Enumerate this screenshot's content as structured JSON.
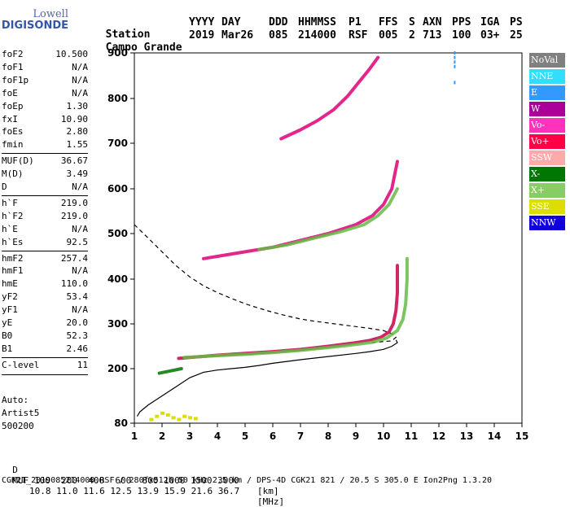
{
  "logo": {
    "line1": "Lowell",
    "line2": "DIGISONDE"
  },
  "header": {
    "labels": [
      "Station",
      "YYYY",
      "DAY",
      "DDD",
      "HHMMSS",
      "P1",
      "FFS",
      "S",
      "AXN",
      "PPS",
      "IGA",
      "PS"
    ],
    "values": [
      "Campo Grande",
      "2019",
      "Mar26",
      "085",
      "214000",
      "RSF",
      "005",
      "2",
      "713",
      "100",
      "03+",
      "25"
    ]
  },
  "params": [
    {
      "k": "foF2",
      "v": "10.500"
    },
    {
      "k": "foF1",
      "v": "N/A"
    },
    {
      "k": "foF1p",
      "v": "N/A"
    },
    {
      "k": "foE",
      "v": "N/A"
    },
    {
      "k": "foEp",
      "v": "1.30"
    },
    {
      "k": "fxI",
      "v": "10.90"
    },
    {
      "k": "foEs",
      "v": "2.80"
    },
    {
      "k": "fmin",
      "v": "1.55"
    },
    {
      "k": "MUF(D)",
      "v": "36.67"
    },
    {
      "k": "M(D)",
      "v": "3.49"
    },
    {
      "k": "D",
      "v": "N/A"
    },
    {
      "k": "h`F",
      "v": "219.0"
    },
    {
      "k": "h`F2",
      "v": "219.0"
    },
    {
      "k": "h`E",
      "v": "N/A"
    },
    {
      "k": "h`Es",
      "v": "92.5"
    },
    {
      "k": "hmF2",
      "v": "257.4"
    },
    {
      "k": "hmF1",
      "v": "N/A"
    },
    {
      "k": "hmE",
      "v": "110.0"
    },
    {
      "k": "yF2",
      "v": "53.4"
    },
    {
      "k": "yF1",
      "v": "N/A"
    },
    {
      "k": "yE",
      "v": "20.0"
    },
    {
      "k": "B0",
      "v": "52.3"
    },
    {
      "k": "B1",
      "v": "2.46"
    },
    {
      "k": "C-level",
      "v": "11"
    }
  ],
  "autoscaling": {
    "line1": "Auto:",
    "line2": "Artist5",
    "line3": "500200"
  },
  "legend": [
    {
      "label": "NoVal",
      "bg": "#808080",
      "fg": "#ffffff"
    },
    {
      "label": "NNE",
      "bg": "#33ddff",
      "fg": "#ffffff"
    },
    {
      "label": "E",
      "bg": "#3399ff",
      "fg": "#ffffff"
    },
    {
      "label": "W",
      "bg": "#aa0099",
      "fg": "#ffffff"
    },
    {
      "label": "Vo-",
      "bg": "#ff33bb",
      "fg": "#ffffff"
    },
    {
      "label": "Vo+",
      "bg": "#ff0044",
      "fg": "#ffffff"
    },
    {
      "label": "SSW",
      "bg": "#ffaaaa",
      "fg": "#ffffff"
    },
    {
      "label": "X-",
      "bg": "#007700",
      "fg": "#ffffff"
    },
    {
      "label": "X+",
      "bg": "#88cc66",
      "fg": "#ffffff"
    },
    {
      "label": "SSE",
      "bg": "#dddd00",
      "fg": "#ffffff"
    },
    {
      "label": "NNW",
      "bg": "#1100dd",
      "fg": "#ffffff"
    }
  ],
  "footer": {
    "d_label": "D",
    "d_values": "100  200  400  600  800 1000 1500 3000",
    "d_unit": "[km]",
    "muf_label": "MUF",
    "muf_values": "10.8 11.0 11.6 12.5 13.9 15.9 21.6 36.7",
    "muf_unit": "[MHz]",
    "info": "CGK21_2019085214000.RSF / 280fx512h 50 kHz 2.5 km / DPS-4D CGK21 821 / 20.5 S 305.0 E Ion2Png 1.3.20"
  },
  "chart_data": {
    "type": "scatter",
    "x_ticks": [
      1,
      2,
      3,
      4,
      5,
      6,
      7,
      8,
      9,
      10,
      11,
      12,
      13,
      14,
      15
    ],
    "y_ticks": [
      80,
      200,
      300,
      400,
      500,
      600,
      700,
      800,
      900
    ],
    "xlim": [
      1,
      15
    ],
    "ylim": [
      80,
      900
    ],
    "grid": false,
    "legend_placement": "right",
    "series": [
      {
        "color": "#000000",
        "style": "dashed",
        "x": [
          1.0,
          1.5,
          2.0,
          2.5,
          3.0,
          3.5,
          4.0,
          4.5,
          5.0,
          5.5,
          6.0,
          6.5,
          7.0,
          7.5,
          8.0,
          8.5,
          9.0,
          9.5,
          10.0,
          10.3,
          10.45,
          10.3,
          9.5
        ],
        "y": [
          520,
          490,
          460,
          430,
          405,
          385,
          370,
          357,
          345,
          335,
          326,
          318,
          311,
          306,
          302,
          298,
          294,
          290,
          285,
          278,
          270,
          262,
          258
        ]
      },
      {
        "color": "#000000",
        "style": "solid",
        "x": [
          1.1,
          1.2,
          1.5,
          2.0,
          2.5,
          3.0,
          3.5,
          4.0,
          4.5,
          5.0,
          5.5,
          6.0,
          7.0,
          8.0,
          9.0,
          9.5,
          10.0,
          10.3,
          10.5,
          10.45
        ],
        "y": [
          95,
          105,
          120,
          140,
          160,
          180,
          192,
          197,
          200,
          203,
          207,
          212,
          220,
          227,
          234,
          238,
          243,
          250,
          258,
          264
        ]
      },
      {
        "color": "#c8004a",
        "style": "trace",
        "x": [
          2.6,
          3.0,
          4.0,
          5.0,
          6.0,
          7.0,
          8.0,
          9.0,
          9.5,
          9.9,
          10.2,
          10.35,
          10.45,
          10.5,
          10.5
        ],
        "y": [
          223,
          225,
          230,
          234,
          238,
          243,
          250,
          258,
          263,
          270,
          282,
          300,
          330,
          370,
          430
        ]
      },
      {
        "color": "#66bb44",
        "style": "trace",
        "x": [
          2.8,
          4.0,
          5.0,
          6.0,
          7.0,
          8.0,
          9.0,
          9.6,
          10.1,
          10.5,
          10.7,
          10.8,
          10.85,
          10.85
        ],
        "y": [
          225,
          229,
          232,
          236,
          241,
          247,
          254,
          259,
          268,
          285,
          310,
          345,
          400,
          445
        ]
      },
      {
        "color": "#dd0077",
        "style": "trace",
        "x": [
          3.5,
          4.0,
          5.0,
          6.0,
          7.0,
          8.0,
          9.0,
          9.6,
          10.0,
          10.3,
          10.5
        ],
        "y": [
          445,
          450,
          460,
          470,
          485,
          500,
          520,
          540,
          565,
          600,
          660
        ]
      },
      {
        "color": "#66bb44",
        "style": "trace",
        "x": [
          5.5,
          6.5,
          7.5,
          8.5,
          9.3,
          9.8,
          10.2,
          10.5
        ],
        "y": [
          465,
          475,
          490,
          505,
          520,
          540,
          565,
          600
        ]
      },
      {
        "color": "#dd0077",
        "style": "trace",
        "x": [
          6.3,
          7.0,
          7.6,
          8.2,
          8.7,
          9.1,
          9.5,
          9.8
        ],
        "y": [
          710,
          730,
          750,
          775,
          805,
          835,
          865,
          890
        ]
      },
      {
        "color": "#3399ff",
        "style": "dots",
        "x": [
          12.6,
          12.6,
          12.6,
          12.6,
          12.6
        ],
        "y": [
          835,
          870,
          880,
          890,
          900
        ]
      },
      {
        "color": "#dddd00",
        "style": "scatter",
        "x": [
          1.6,
          1.8,
          2.0,
          2.2,
          2.4,
          2.6,
          2.8,
          3.0,
          3.2
        ],
        "y": [
          88,
          95,
          102,
          98,
          92,
          88,
          95,
          92,
          90
        ]
      },
      {
        "color": "#007700",
        "style": "trace",
        "x": [
          1.9,
          2.3,
          2.7
        ],
        "y": [
          190,
          195,
          200
        ]
      }
    ]
  }
}
